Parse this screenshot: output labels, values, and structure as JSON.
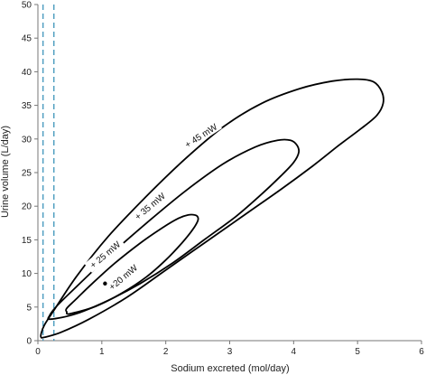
{
  "chart_data": {
    "type": "line",
    "title": "",
    "xlabel": "Sodium excreted (mol/day)",
    "ylabel": "Urine volume (L/day)",
    "xlim": [
      0,
      6
    ],
    "ylim": [
      0,
      50
    ],
    "xticks": [
      "0",
      "1",
      "2",
      "3",
      "4",
      "5",
      "6"
    ],
    "yticks": [
      "0",
      "5",
      "10",
      "15",
      "20",
      "25",
      "30",
      "35",
      "40",
      "45",
      "50"
    ],
    "grid": false,
    "legend": "none",
    "colors": {
      "contour": "#000000",
      "reference": "#4a9bbf"
    },
    "reference_lines": [
      {
        "x": 0.08,
        "style": "dashed"
      },
      {
        "x": 0.25,
        "style": "dashed"
      }
    ],
    "point": {
      "x": 1.05,
      "y": 8.5,
      "label": "+20 mW"
    },
    "series": [
      {
        "label": "+ 45 mW",
        "label_at": {
          "x": 2.55,
          "y": 30.5,
          "angle": -33
        },
        "closed": true,
        "x": [
          0.1,
          0.35,
          0.8,
          1.4,
          2.0,
          2.6,
          3.2,
          3.8,
          4.3,
          4.7,
          5.05,
          5.3,
          5.4,
          5.38,
          5.25,
          5.0,
          4.6,
          4.1,
          3.5,
          2.9,
          2.3,
          1.7,
          1.1,
          0.6,
          0.25,
          0.1,
          0.05,
          0.05,
          0.1
        ],
        "y": [
          0.5,
          1.2,
          3.2,
          6.5,
          10.5,
          14.5,
          18.5,
          22.5,
          26.0,
          29.0,
          31.5,
          33.5,
          35.3,
          37.0,
          38.5,
          38.9,
          38.6,
          37.5,
          35.3,
          31.8,
          27.0,
          21.5,
          15.5,
          9.5,
          4.5,
          2.3,
          1.0,
          0.5,
          0.5
        ]
      },
      {
        "label": "+ 35 mW",
        "label_at": {
          "x": 1.75,
          "y": 20.0,
          "angle": -40
        },
        "closed": true,
        "x": [
          0.2,
          0.6,
          1.1,
          1.6,
          2.1,
          2.6,
          3.1,
          3.5,
          3.8,
          4.0,
          4.08,
          4.05,
          3.95,
          3.75,
          3.4,
          2.9,
          2.3,
          1.7,
          1.1,
          0.6,
          0.3,
          0.18,
          0.2
        ],
        "y": [
          3.2,
          4.0,
          6.0,
          8.5,
          11.5,
          15.0,
          18.5,
          21.8,
          24.5,
          26.5,
          28.0,
          29.1,
          29.8,
          29.8,
          28.8,
          26.3,
          22.2,
          17.5,
          12.5,
          8.0,
          5.2,
          3.7,
          3.2
        ]
      },
      {
        "label": "+ 25 mW",
        "label_at": {
          "x": 1.05,
          "y": 12.8,
          "angle": -40
        },
        "closed": true,
        "x": [
          0.5,
          0.9,
          1.3,
          1.7,
          2.0,
          2.25,
          2.42,
          2.5,
          2.5,
          2.45,
          2.35,
          2.2,
          1.95,
          1.6,
          1.2,
          0.85,
          0.6,
          0.45,
          0.45,
          0.5
        ],
        "y": [
          4.0,
          5.1,
          7.0,
          9.5,
          12.0,
          14.5,
          16.5,
          17.8,
          18.4,
          18.7,
          18.7,
          18.2,
          16.8,
          14.5,
          11.5,
          8.5,
          6.2,
          4.8,
          4.3,
          4.0
        ]
      }
    ]
  }
}
